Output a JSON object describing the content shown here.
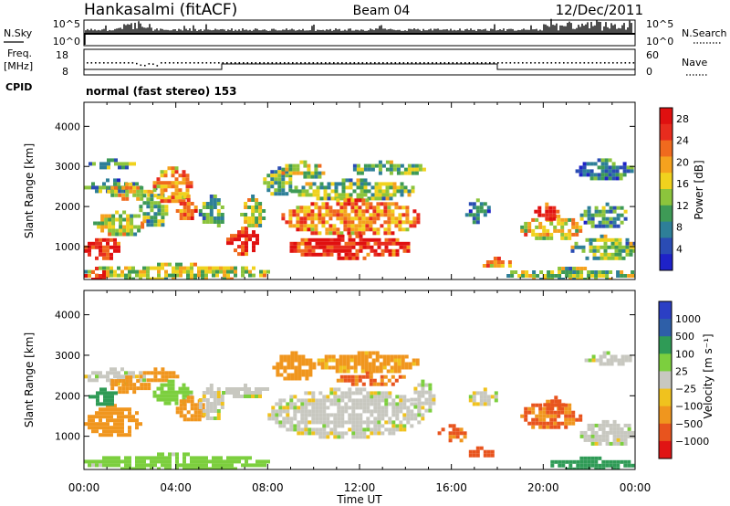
{
  "header": {
    "station": "Hankasalmi (fitACF)",
    "beam": "Beam 04",
    "date": "12/Dec/2011"
  },
  "top_strip": {
    "left_label": "N.Sky",
    "left_ticks": [
      "10^5",
      "10^0"
    ],
    "right_ticks": [
      "10^5",
      "10^0"
    ],
    "right_label": "N.Search"
  },
  "freq_strip": {
    "label_line1": "Freq.",
    "label_line2": "[MHz]",
    "left_ticks": [
      "18",
      "8"
    ],
    "right_ticks": [
      "60",
      "0"
    ],
    "right_label": "Nave",
    "cpid_label": "CPID",
    "mode": "normal (fast stereo) 153"
  },
  "chart_data": [
    {
      "type": "heatmap",
      "name": "power",
      "xlabel": "Time UT",
      "ylabel": "Slant Range [km]",
      "x_ticks": [
        "00:00",
        "04:00",
        "08:00",
        "12:00",
        "16:00",
        "20:00",
        "00:00"
      ],
      "x_hours": [
        0,
        4,
        8,
        12,
        16,
        20,
        24
      ],
      "y_ticks": [
        1000,
        2000,
        3000,
        4000
      ],
      "ylim": [
        180,
        4600
      ],
      "colorbar": {
        "label": "Power [dB]",
        "ticks": [
          "4",
          "8",
          "12",
          "16",
          "20",
          "24",
          "28"
        ],
        "tick_values": [
          4,
          8,
          12,
          16,
          20,
          24,
          28
        ],
        "range": [
          0,
          30
        ]
      },
      "regions": [
        {
          "t": [
            0.0,
            1.5
          ],
          "r": [
            700,
            1300
          ],
          "v": 27
        },
        {
          "t": [
            0.4,
            2.6
          ],
          "r": [
            1300,
            1900
          ],
          "v": 15
        },
        {
          "t": [
            0.0,
            2.4
          ],
          "r": [
            2400,
            2700
          ],
          "v": 10
        },
        {
          "t": [
            1.0,
            2.8
          ],
          "r": [
            2200,
            2600
          ],
          "v": 17
        },
        {
          "t": [
            0.2,
            2.2
          ],
          "r": [
            3000,
            3200
          ],
          "v": 11
        },
        {
          "t": [
            2.4,
            3.6
          ],
          "r": [
            1500,
            2500
          ],
          "v": 12
        },
        {
          "t": [
            3.0,
            4.6
          ],
          "r": [
            2100,
            3000
          ],
          "v": 19
        },
        {
          "t": [
            4.0,
            4.8
          ],
          "r": [
            1700,
            2300
          ],
          "v": 22
        },
        {
          "t": [
            5.0,
            6.1
          ],
          "r": [
            1500,
            2300
          ],
          "v": 12
        },
        {
          "t": [
            6.2,
            7.6
          ],
          "r": [
            850,
            1500
          ],
          "v": 27
        },
        {
          "t": [
            6.8,
            7.8
          ],
          "r": [
            1500,
            2300
          ],
          "v": 15
        },
        {
          "t": [
            7.8,
            9.0
          ],
          "r": [
            2300,
            3000
          ],
          "v": 11
        },
        {
          "t": [
            8.6,
            10.4
          ],
          "r": [
            2700,
            3150
          ],
          "v": 15
        },
        {
          "t": [
            9.0,
            14.4
          ],
          "r": [
            2200,
            2700
          ],
          "v": 13
        },
        {
          "t": [
            8.6,
            14.6
          ],
          "r": [
            1300,
            2200
          ],
          "v": 21
        },
        {
          "t": [
            8.8,
            14.2
          ],
          "r": [
            750,
            1300
          ],
          "v": 26
        },
        {
          "t": [
            11.4,
            14.8
          ],
          "r": [
            2800,
            3150
          ],
          "v": 11
        },
        {
          "t": [
            16.6,
            17.6
          ],
          "r": [
            1600,
            2200
          ],
          "v": 7
        },
        {
          "t": [
            17.2,
            18.6
          ],
          "r": [
            500,
            750
          ],
          "v": 19
        },
        {
          "t": [
            19.0,
            21.6
          ],
          "r": [
            1200,
            1800
          ],
          "v": 17
        },
        {
          "t": [
            19.6,
            20.6
          ],
          "r": [
            1700,
            2100
          ],
          "v": 27
        },
        {
          "t": [
            21.2,
            24.0
          ],
          "r": [
            700,
            1300
          ],
          "v": 12
        },
        {
          "t": [
            21.4,
            23.8
          ],
          "r": [
            2700,
            3200
          ],
          "v": 7
        },
        {
          "t": [
            21.6,
            23.6
          ],
          "r": [
            1500,
            2100
          ],
          "v": 10
        },
        {
          "t": [
            18.4,
            24.0
          ],
          "r": [
            200,
            500
          ],
          "v": 13
        },
        {
          "t": [
            0.0,
            8.0
          ],
          "r": [
            200,
            600
          ],
          "v": 15
        },
        {
          "t": [
            0.0,
            1.0
          ],
          "r": [
            200,
            500
          ],
          "v": 25
        }
      ]
    },
    {
      "type": "heatmap",
      "name": "velocity",
      "xlabel": "Time UT",
      "ylabel": "Slant Range [km]",
      "x_ticks": [
        "00:00",
        "04:00",
        "08:00",
        "12:00",
        "16:00",
        "20:00",
        "00:00"
      ],
      "x_hours": [
        0,
        4,
        8,
        12,
        16,
        20,
        24
      ],
      "y_ticks": [
        1000,
        2000,
        3000,
        4000
      ],
      "ylim": [
        180,
        4600
      ],
      "colorbar": {
        "label": "Velocity [m s⁻¹]",
        "ticks": [
          "1000",
          "500",
          "100",
          "25",
          "−25",
          "−100",
          "−500",
          "−1000"
        ],
        "tick_values": [
          1000,
          500,
          100,
          25,
          -25,
          -100,
          -500,
          -1000
        ]
      },
      "regions": [
        {
          "t": [
            0.0,
            2.6
          ],
          "r": [
            2300,
            2700
          ],
          "v": 0
        },
        {
          "t": [
            0.0,
            2.4
          ],
          "r": [
            1000,
            1800
          ],
          "v": -200
        },
        {
          "t": [
            0.2,
            1.4
          ],
          "r": [
            1800,
            2200
          ],
          "v": 150
        },
        {
          "t": [
            1.0,
            2.8
          ],
          "r": [
            2100,
            2500
          ],
          "v": -250
        },
        {
          "t": [
            2.4,
            4.0
          ],
          "r": [
            2400,
            2700
          ],
          "v": -200
        },
        {
          "t": [
            3.0,
            4.6
          ],
          "r": [
            1800,
            2400
          ],
          "v": 60
        },
        {
          "t": [
            4.0,
            5.2
          ],
          "r": [
            1400,
            2000
          ],
          "v": -250
        },
        {
          "t": [
            5.0,
            6.0
          ],
          "r": [
            1400,
            2300
          ],
          "v": 0
        },
        {
          "t": [
            6.0,
            8.0
          ],
          "r": [
            2000,
            2300
          ],
          "v": 0
        },
        {
          "t": [
            8.0,
            14.8
          ],
          "r": [
            1000,
            2200
          ],
          "v": 0
        },
        {
          "t": [
            8.2,
            10.0
          ],
          "r": [
            2400,
            3100
          ],
          "v": -200
        },
        {
          "t": [
            10.0,
            14.6
          ],
          "r": [
            2600,
            3100
          ],
          "v": -120
        },
        {
          "t": [
            11.0,
            14.0
          ],
          "r": [
            2300,
            2600
          ],
          "v": -300
        },
        {
          "t": [
            14.2,
            15.2
          ],
          "r": [
            1600,
            2400
          ],
          "v": 0
        },
        {
          "t": [
            15.4,
            16.6
          ],
          "r": [
            900,
            1300
          ],
          "v": -300
        },
        {
          "t": [
            16.6,
            17.8
          ],
          "r": [
            500,
            750
          ],
          "v": -600
        },
        {
          "t": [
            16.6,
            18.0
          ],
          "r": [
            1800,
            2200
          ],
          "v": 0
        },
        {
          "t": [
            19.0,
            21.6
          ],
          "r": [
            1200,
            1900
          ],
          "v": -300
        },
        {
          "t": [
            20.0,
            20.8
          ],
          "r": [
            1700,
            2000
          ],
          "v": -700
        },
        {
          "t": [
            21.6,
            24.0
          ],
          "r": [
            800,
            1400
          ],
          "v": 0
        },
        {
          "t": [
            21.8,
            23.8
          ],
          "r": [
            2800,
            3100
          ],
          "v": 0
        },
        {
          "t": [
            20.0,
            24.0
          ],
          "r": [
            200,
            500
          ],
          "v": 250
        },
        {
          "t": [
            0.0,
            8.0
          ],
          "r": [
            200,
            600
          ],
          "v": 60
        }
      ]
    }
  ],
  "colors": {
    "frame": "#000000",
    "background": "#ffffff"
  }
}
